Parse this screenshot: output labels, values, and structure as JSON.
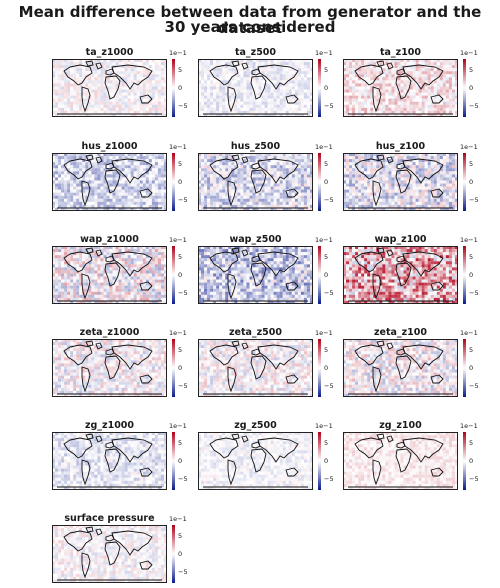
{
  "figure": {
    "title_line1": "Mean difference between data from generator and the dataset",
    "title_line2": "30 years considered"
  },
  "colorbar": {
    "exponent": "1e−1",
    "ticks": [
      "5",
      "0",
      "−5"
    ],
    "tick_values": [
      0.5,
      0,
      -0.5
    ],
    "range": [
      -0.8,
      0.8
    ],
    "colormap": [
      "#0a1a8c",
      "#ffffff",
      "#b00018"
    ]
  },
  "chart_data": {
    "type": "heatmap",
    "title": "Mean difference between data from generator and the dataset 30 years considered",
    "colorbar_range": [
      -0.8,
      0.8
    ],
    "colorbar_ticks": [
      -0.5,
      0,
      0.5
    ],
    "colorbar_scale_label": "1e−1",
    "panels": [
      {
        "label": "ta_z1000",
        "bias": 0.0,
        "spread": 0.15
      },
      {
        "label": "ta_z500",
        "bias": -0.05,
        "spread": 0.12
      },
      {
        "label": "ta_z100",
        "bias": 0.08,
        "spread": 0.2
      },
      {
        "label": "hus_z1000",
        "bias": -0.15,
        "spread": 0.2
      },
      {
        "label": "hus_z500",
        "bias": -0.12,
        "spread": 0.25
      },
      {
        "label": "hus_z100",
        "bias": -0.08,
        "spread": 0.28
      },
      {
        "label": "wap_z1000",
        "bias": 0.0,
        "spread": 0.3
      },
      {
        "label": "wap_z500",
        "bias": -0.18,
        "spread": 0.3
      },
      {
        "label": "wap_z100",
        "bias": 0.25,
        "spread": 0.45
      },
      {
        "label": "zeta_z1000",
        "bias": 0.0,
        "spread": 0.22
      },
      {
        "label": "zeta_z500",
        "bias": 0.0,
        "spread": 0.2
      },
      {
        "label": "zeta_z100",
        "bias": 0.0,
        "spread": 0.25
      },
      {
        "label": "zg_z1000",
        "bias": -0.08,
        "spread": 0.15
      },
      {
        "label": "zg_z500",
        "bias": -0.03,
        "spread": 0.1
      },
      {
        "label": "zg_z100",
        "bias": 0.06,
        "spread": 0.1
      },
      {
        "label": "surface pressure",
        "bias": 0.0,
        "spread": 0.15
      }
    ]
  }
}
